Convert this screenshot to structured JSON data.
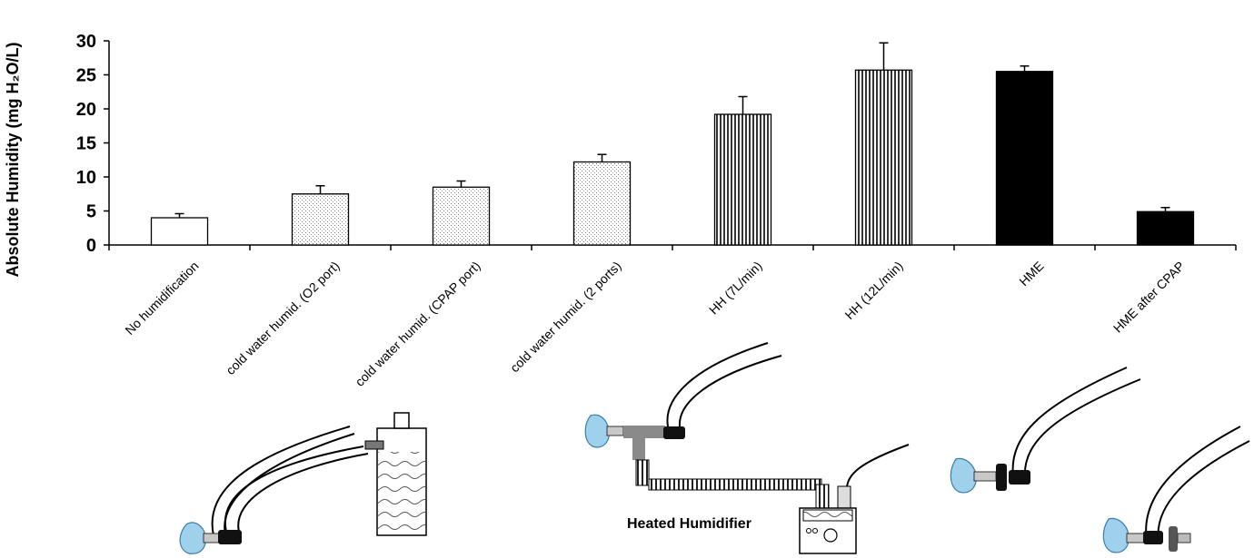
{
  "chart_data": {
    "type": "bar",
    "ylabel": "Absolute Humidity (mg H₂O/L)",
    "xlabel": "",
    "ylim": [
      0,
      30
    ],
    "yticks": [
      0,
      5,
      10,
      15,
      20,
      25,
      30
    ],
    "grid": false,
    "categories": [
      "No humidification",
      "cold water humid. (O2 port)",
      "cold water humid. (CPAP port)",
      "cold water humid. (2 ports)",
      "HH (7L/min)",
      "HH (12L/min)",
      "HME",
      "HME after CPAP"
    ],
    "values": [
      4.0,
      7.5,
      8.5,
      12.2,
      19.2,
      25.7,
      25.5,
      4.9
    ],
    "errors": [
      0.6,
      1.2,
      0.9,
      1.1,
      2.6,
      4.0,
      0.8,
      0.6
    ],
    "fills": [
      "white",
      "dotted",
      "dotted",
      "dotted",
      "vstripes",
      "vstripes",
      "black",
      "black"
    ]
  },
  "illustrations": {
    "heated_humidifier_label": "Heated Humidifier"
  },
  "colors": {
    "mask_blue": "#9fd0ec",
    "bar_black": "#000000",
    "tube_gray": "#8a8a8a"
  }
}
